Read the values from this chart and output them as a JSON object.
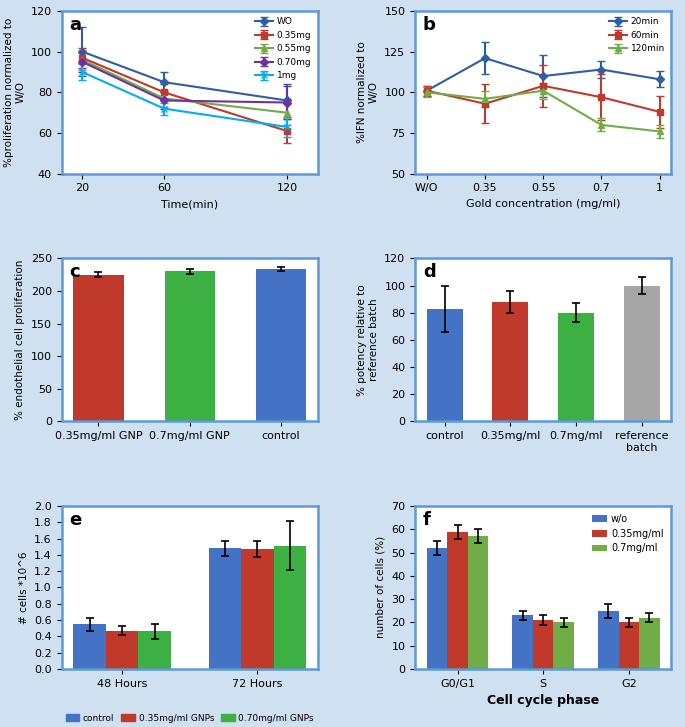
{
  "panel_a": {
    "title": "a",
    "xlabel": "Time(min)",
    "ylabel": "%proliferation normalized to\nW/O",
    "x": [
      20,
      60,
      120
    ],
    "series": {
      "WO": {
        "y": [
          100,
          85,
          76
        ],
        "yerr": [
          12,
          5,
          8
        ],
        "color": "#2e5fa3",
        "marker": "D",
        "label": "WO"
      },
      "0.35mg": {
        "y": [
          97,
          80,
          61
        ],
        "yerr": [
          5,
          4,
          6
        ],
        "color": "#c0392b",
        "marker": "s",
        "label": "0.35mg"
      },
      "0.55mg": {
        "y": [
          96,
          77,
          70
        ],
        "yerr": [
          5,
          4,
          6
        ],
        "color": "#70ad47",
        "marker": "^",
        "label": "0.55mg"
      },
      "0.70mg": {
        "y": [
          95,
          76,
          75
        ],
        "yerr": [
          5,
          4,
          8
        ],
        "color": "#7030a0",
        "marker": "D",
        "label": "0.70mg"
      },
      "1mg": {
        "y": [
          90,
          72,
          63
        ],
        "yerr": [
          4,
          3,
          5
        ],
        "color": "#00b0f0",
        "marker": "x",
        "label": "1mg"
      }
    },
    "ylim": [
      40,
      120
    ],
    "yticks": [
      40,
      60,
      80,
      100,
      120
    ],
    "xticks": [
      20,
      60,
      120
    ]
  },
  "panel_b": {
    "title": "b",
    "xlabel": "Gold concentration (mg/ml)",
    "ylabel": "%IFN normalized to\nW/O",
    "x_labels": [
      "W/O",
      "0.35",
      "0.55",
      "0.7",
      "1"
    ],
    "series": {
      "20min": {
        "y": [
          101,
          121,
          110,
          114,
          108
        ],
        "yerr": [
          3,
          10,
          13,
          5,
          5
        ],
        "color": "#2e5fa3",
        "marker": "D",
        "label": "20min"
      },
      "60min": {
        "y": [
          101,
          93,
          104,
          97,
          88
        ],
        "yerr": [
          3,
          12,
          13,
          14,
          10
        ],
        "color": "#c0392b",
        "marker": "s",
        "label": "60min"
      },
      "120min": {
        "y": [
          100,
          96,
          101,
          80,
          76
        ],
        "yerr": [
          3,
          5,
          5,
          4,
          4
        ],
        "color": "#70ad47",
        "marker": "^",
        "label": "120min"
      }
    },
    "ylim": [
      50,
      150
    ],
    "yticks": [
      50,
      75,
      100,
      125,
      150
    ]
  },
  "panel_c": {
    "title": "c",
    "ylabel": "% endothelial cell proliferation",
    "categories": [
      "0.35mg/ml GNP",
      "0.7mg/ml GNP",
      "control"
    ],
    "values": [
      225,
      230,
      234
    ],
    "yerr": [
      4,
      4,
      3
    ],
    "colors": [
      "#c0392b",
      "#3cb043",
      "#4472c4"
    ],
    "ylim": [
      0,
      250
    ],
    "yticks": [
      0,
      50,
      100,
      150,
      200,
      250
    ]
  },
  "panel_d": {
    "title": "d",
    "ylabel": "% potency relative to\nreference batch",
    "categories": [
      "control",
      "0.35mg/ml",
      "0.7mg/ml",
      "reference\nbatch"
    ],
    "values": [
      83,
      88,
      80,
      100
    ],
    "yerr": [
      17,
      8,
      7,
      6
    ],
    "colors": [
      "#4472c4",
      "#c0392b",
      "#3cb043",
      "#a6a6a6"
    ],
    "ylim": [
      0,
      120
    ],
    "yticks": [
      0,
      20,
      40,
      60,
      80,
      100,
      120
    ]
  },
  "panel_e": {
    "title": "e",
    "ylabel": "# cells *10^6",
    "groups": [
      "48 Hours",
      "72 Hours"
    ],
    "series": {
      "control": {
        "values": [
          0.55,
          1.48
        ],
        "yerr": [
          0.08,
          0.09
        ],
        "color": "#4472c4",
        "label": "control"
      },
      "0.35mg/ml GNPs": {
        "values": [
          0.47,
          1.47
        ],
        "yerr": [
          0.05,
          0.1
        ],
        "color": "#c0392b",
        "label": "0.35mg/ml GNPs"
      },
      "0.70mg/ml GNPs": {
        "values": [
          0.46,
          1.51
        ],
        "yerr": [
          0.09,
          0.3
        ],
        "color": "#3cb043",
        "label": "0.70mg/ml GNPs"
      }
    },
    "ylim": [
      0,
      2.0
    ],
    "yticks": [
      0,
      0.2,
      0.4,
      0.6,
      0.8,
      1.0,
      1.2,
      1.4,
      1.6,
      1.8,
      2.0
    ]
  },
  "panel_f": {
    "title": "f",
    "xlabel": "Cell cycle phase",
    "ylabel": "number of cells (%)",
    "groups": [
      "G0/G1",
      "S",
      "G2"
    ],
    "series": {
      "w/o": {
        "values": [
          52,
          23,
          25
        ],
        "yerr": [
          3,
          2,
          3
        ],
        "color": "#4472c4",
        "label": "w/o"
      },
      "0.35mg/ml": {
        "values": [
          59,
          21,
          20
        ],
        "yerr": [
          3,
          2,
          2
        ],
        "color": "#c0392b",
        "label": "0.35mg/ml"
      },
      "0.7mg/ml": {
        "values": [
          57,
          20,
          22
        ],
        "yerr": [
          3,
          2,
          2
        ],
        "color": "#70ad47",
        "label": "0.7mg/ml"
      }
    },
    "ylim": [
      0,
      70
    ],
    "yticks": [
      0,
      10,
      20,
      30,
      40,
      50,
      60,
      70
    ]
  },
  "bg_color": "#cfe0f0",
  "panel_bg": "#ffffff",
  "border_color": "#5b9bd5"
}
